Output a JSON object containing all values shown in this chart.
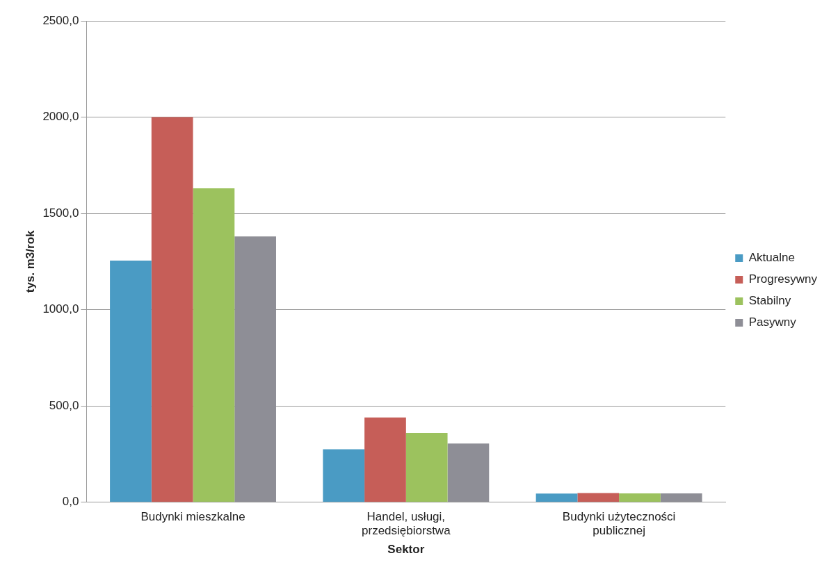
{
  "chart_data": {
    "type": "bar",
    "xlabel": "Sektor",
    "ylabel": "tys. m3/rok",
    "categories": [
      "Budynki mieszkalne",
      "Handel, usługi, przedsiębiorstwa",
      "Budynki użyteczności publicznej"
    ],
    "series": [
      {
        "name": "Aktualne",
        "color": "#4a9bc4",
        "values": [
          1255,
          275,
          45
        ]
      },
      {
        "name": "Progresywny",
        "color": "#c65e58",
        "values": [
          2000,
          440,
          48
        ]
      },
      {
        "name": "Stabilny",
        "color": "#9cc25e",
        "values": [
          1630,
          360,
          46
        ]
      },
      {
        "name": "Pasywny",
        "color": "#8e8e96",
        "values": [
          1380,
          305,
          46
        ]
      }
    ],
    "ylim": [
      0,
      2500
    ],
    "yticks": [
      {
        "value": 0,
        "label": "0,0"
      },
      {
        "value": 500,
        "label": "500,0"
      },
      {
        "value": 1000,
        "label": "1000,0"
      },
      {
        "value": 1500,
        "label": "1500,0"
      },
      {
        "value": 2000,
        "label": "2000,0"
      },
      {
        "value": 2500,
        "label": "2500,0"
      }
    ],
    "grid": "y",
    "legend": "right"
  }
}
